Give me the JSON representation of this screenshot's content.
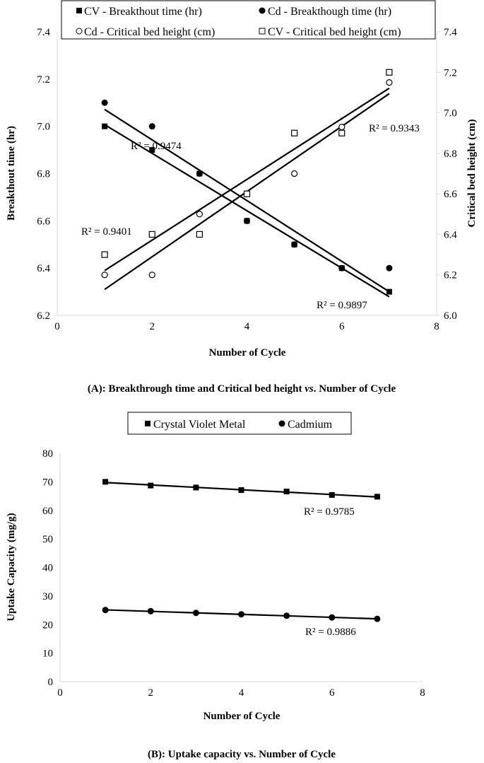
{
  "chart_data": [
    {
      "type": "scatter",
      "caption": "(A): Breakthrough time and Critical bed height ",
      "caption_italic": "vs",
      "caption_end": ". Number of Cycle",
      "xlabel": "Number of Cycle",
      "ylabel": "Breakthout time (hr)",
      "y2label": "Critical bed height (cm)",
      "xlim": [
        0,
        8
      ],
      "ylim": [
        6.2,
        7.4
      ],
      "y2lim": [
        6.0,
        7.4
      ],
      "xticks": [
        "0",
        "2",
        "4",
        "6",
        "8"
      ],
      "yticks": [
        "6.2",
        "6.4",
        "6.6",
        "6.8",
        "7.0",
        "7.2",
        "7.4"
      ],
      "y2ticks": [
        "6.0",
        "6.2",
        "6.4",
        "6.6",
        "6.8",
        "7.0",
        "7.2",
        "7.4"
      ],
      "grid": false,
      "legend_position": "top",
      "trendlines": "linear",
      "x": [
        1,
        2,
        3,
        4,
        5,
        6,
        7
      ],
      "series": [
        {
          "name": "CV - Breakthout time (hr)",
          "axis": "left",
          "marker": "filled-square",
          "values": [
            7.0,
            6.9,
            6.8,
            6.6,
            6.5,
            6.4,
            6.3
          ]
        },
        {
          "name": "Cd - Breakthough time (hr)",
          "axis": "left",
          "marker": "filled-circle",
          "values": [
            7.1,
            7.0,
            6.8,
            6.6,
            6.5,
            6.4,
            6.4
          ]
        },
        {
          "name": "Cd - Critical bed height (cm)",
          "axis": "right",
          "marker": "open-circle",
          "values": [
            6.2,
            6.2,
            6.5,
            6.6,
            6.7,
            6.93,
            7.15
          ]
        },
        {
          "name": "CV - Critical bed height (cm)",
          "axis": "right",
          "marker": "open-square",
          "values": [
            6.3,
            6.4,
            6.4,
            6.6,
            6.9,
            6.9,
            7.2
          ]
        }
      ],
      "annotations": [
        "R² = 0.9474",
        "R² = 0.9343",
        "R² = 0.9401",
        "R² = 0.9897"
      ]
    },
    {
      "type": "line",
      "caption": "(B): Uptake capacity vs. Number of Cycle",
      "xlabel": "Number of Cycle",
      "ylabel": "Uptake Capacity (mg/g)",
      "xlim": [
        0,
        8
      ],
      "ylim": [
        0,
        80
      ],
      "xticks": [
        "0",
        "2",
        "4",
        "6",
        "8"
      ],
      "yticks": [
        "0",
        "10",
        "20",
        "30",
        "40",
        "50",
        "60",
        "70",
        "80"
      ],
      "grid": false,
      "legend_position": "top",
      "trendlines": "linear",
      "x": [
        1,
        2,
        3,
        4,
        5,
        6,
        7
      ],
      "series": [
        {
          "name": "Crystal Violet Metal",
          "marker": "filled-square",
          "values": [
            70.0,
            68.7,
            68.0,
            67.1,
            66.6,
            65.4,
            64.8
          ]
        },
        {
          "name": "Cadmium",
          "marker": "filled-circle",
          "values": [
            25.1,
            24.7,
            24.1,
            23.6,
            23.1,
            22.5,
            22.0
          ]
        }
      ],
      "annotations": [
        "R² = 0.9785",
        "R² = 0.9886"
      ]
    }
  ],
  "colors": {
    "marker": "#000000",
    "axis": "#d9d9d9",
    "trend": "#000000"
  }
}
